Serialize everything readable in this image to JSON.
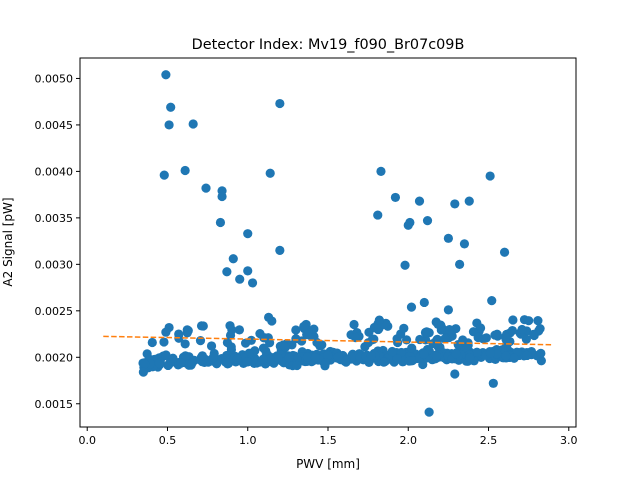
{
  "chart_data": {
    "type": "scatter",
    "title": "Detector Index: Mv19_f090_Br07c09B",
    "xlabel": "PWV [mm]",
    "ylabel": "A2 Signal [pW]",
    "xlim": [
      -0.045,
      3.045
    ],
    "ylim": [
      0.00125,
      0.00522
    ],
    "xticks": [
      0.0,
      0.5,
      1.0,
      1.5,
      2.0,
      2.5,
      3.0
    ],
    "xtick_labels": [
      "0.0",
      "0.5",
      "1.0",
      "1.5",
      "2.0",
      "2.5",
      "3.0"
    ],
    "yticks": [
      0.0015,
      0.002,
      0.0025,
      0.003,
      0.0035,
      0.004,
      0.0045,
      0.005
    ],
    "ytick_labels": [
      "0.0015",
      "0.0020",
      "0.0025",
      "0.0030",
      "0.0035",
      "0.0040",
      "0.0045",
      "0.0050"
    ],
    "grid": false,
    "scatter_color": "#1f77b4",
    "fit_color": "#ff7f0e",
    "fit_line": {
      "style": "dashed",
      "x": [
        0.1,
        2.9
      ],
      "y": [
        0.002225,
        0.002135
      ]
    },
    "outliers": [
      [
        0.49,
        0.00504
      ],
      [
        0.52,
        0.00469
      ],
      [
        0.51,
        0.0045
      ],
      [
        0.66,
        0.00451
      ],
      [
        0.48,
        0.00396
      ],
      [
        0.61,
        0.00401
      ],
      [
        0.74,
        0.00382
      ],
      [
        0.84,
        0.00379
      ],
      [
        0.84,
        0.00373
      ],
      [
        0.83,
        0.00345
      ],
      [
        1.2,
        0.00473
      ],
      [
        1.14,
        0.00398
      ],
      [
        1.0,
        0.00333
      ],
      [
        1.2,
        0.00315
      ],
      [
        0.91,
        0.00306
      ],
      [
        0.87,
        0.00292
      ],
      [
        0.95,
        0.00284
      ],
      [
        1.0,
        0.00293
      ],
      [
        1.03,
        0.0028
      ],
      [
        1.83,
        0.004
      ],
      [
        1.81,
        0.00353
      ],
      [
        1.92,
        0.00372
      ],
      [
        2.01,
        0.00345
      ],
      [
        2.0,
        0.00342
      ],
      [
        2.07,
        0.00368
      ],
      [
        2.12,
        0.00347
      ],
      [
        1.98,
        0.00299
      ],
      [
        2.51,
        0.00395
      ],
      [
        2.29,
        0.00365
      ],
      [
        2.38,
        0.00368
      ],
      [
        2.25,
        0.00328
      ],
      [
        2.35,
        0.00322
      ],
      [
        2.32,
        0.003
      ],
      [
        2.6,
        0.00313
      ],
      [
        2.02,
        0.00254
      ],
      [
        2.1,
        0.00259
      ],
      [
        2.25,
        0.00251
      ],
      [
        2.52,
        0.00261
      ],
      [
        2.13,
        0.00141
      ],
      [
        2.29,
        0.00182
      ],
      [
        2.53,
        0.00172
      ],
      [
        0.35,
        0.00184
      ],
      [
        0.51,
        0.00232
      ],
      [
        0.49,
        0.00227
      ],
      [
        0.57,
        0.00225
      ],
      [
        1.15,
        0.00239
      ],
      [
        1.13,
        0.00243
      ],
      [
        1.82,
        0.0024
      ],
      [
        1.1,
        0.00221
      ],
      [
        1.3,
        0.0022
      ]
    ],
    "cluster": {
      "count": 560,
      "x_min": 0.34,
      "x_max": 2.83,
      "center_y_start": 0.00195,
      "center_y_end": 0.00203,
      "spread": 0.00013,
      "upper_spread": 0.00038
    }
  }
}
